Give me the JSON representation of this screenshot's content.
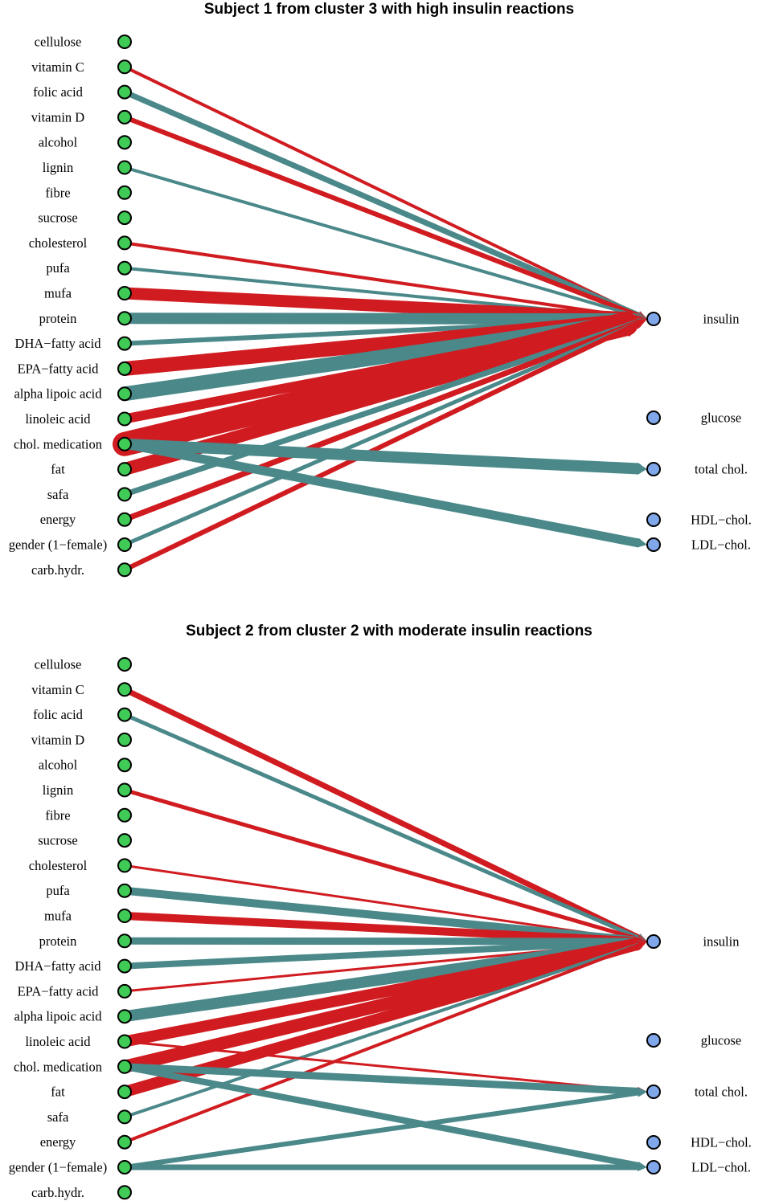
{
  "colors": {
    "positive": "#d01c20",
    "negative": "#4a888a",
    "input_node": "#3fcb55",
    "output_node": "#7fa7ea"
  },
  "inputs": [
    "cellulose",
    "vitamin C",
    "folic acid",
    "vitamin D",
    "alcohol",
    "lignin",
    "fibre",
    "sucrose",
    "cholesterol",
    "pufa",
    "mufa",
    "protein",
    "DHA−fatty acid",
    "EPA−fatty acid",
    "alpha lipoic acid",
    "linoleic acid",
    "chol. medication",
    "fat",
    "safa",
    "energy",
    "gender (1−female)",
    "carb.hydr."
  ],
  "outputs": [
    "insulin",
    "glucose",
    "total chol.",
    "HDL−chol.",
    "LDL−chol."
  ],
  "panels": [
    {
      "title": "Subject 1 from cluster 3 with high insulin reactions",
      "edges": [
        {
          "from": "vitamin C",
          "to": "insulin",
          "sign": "positive",
          "weight": 4
        },
        {
          "from": "folic acid",
          "to": "insulin",
          "sign": "negative",
          "weight": 7
        },
        {
          "from": "vitamin D",
          "to": "insulin",
          "sign": "positive",
          "weight": 6
        },
        {
          "from": "lignin",
          "to": "insulin",
          "sign": "negative",
          "weight": 4
        },
        {
          "from": "cholesterol",
          "to": "insulin",
          "sign": "positive",
          "weight": 4
        },
        {
          "from": "pufa",
          "to": "insulin",
          "sign": "negative",
          "weight": 4
        },
        {
          "from": "mufa",
          "to": "insulin",
          "sign": "positive",
          "weight": 15
        },
        {
          "from": "protein",
          "to": "insulin",
          "sign": "negative",
          "weight": 14
        },
        {
          "from": "DHA−fatty acid",
          "to": "insulin",
          "sign": "negative",
          "weight": 6
        },
        {
          "from": "EPA−fatty acid",
          "to": "insulin",
          "sign": "positive",
          "weight": 18
        },
        {
          "from": "alpha lipoic acid",
          "to": "insulin",
          "sign": "negative",
          "weight": 18
        },
        {
          "from": "linoleic acid",
          "to": "insulin",
          "sign": "positive",
          "weight": 12
        },
        {
          "from": "chol. medication",
          "to": "insulin",
          "sign": "positive",
          "weight": 30
        },
        {
          "from": "fat",
          "to": "insulin",
          "sign": "positive",
          "weight": 16
        },
        {
          "from": "safa",
          "to": "insulin",
          "sign": "negative",
          "weight": 7
        },
        {
          "from": "energy",
          "to": "insulin",
          "sign": "positive",
          "weight": 7
        },
        {
          "from": "gender (1−female)",
          "to": "insulin",
          "sign": "negative",
          "weight": 5
        },
        {
          "from": "carb.hydr.",
          "to": "insulin",
          "sign": "positive",
          "weight": 6
        },
        {
          "from": "chol. medication",
          "to": "total chol.",
          "sign": "negative",
          "weight": 14
        },
        {
          "from": "chol. medication",
          "to": "LDL−chol.",
          "sign": "negative",
          "weight": 11
        }
      ]
    },
    {
      "title": "Subject 2 from cluster 2 with moderate insulin reactions",
      "edges": [
        {
          "from": "vitamin C",
          "to": "insulin",
          "sign": "positive",
          "weight": 7
        },
        {
          "from": "folic acid",
          "to": "insulin",
          "sign": "negative",
          "weight": 5
        },
        {
          "from": "lignin",
          "to": "insulin",
          "sign": "positive",
          "weight": 5
        },
        {
          "from": "cholesterol",
          "to": "insulin",
          "sign": "positive",
          "weight": 3
        },
        {
          "from": "pufa",
          "to": "insulin",
          "sign": "negative",
          "weight": 10
        },
        {
          "from": "mufa",
          "to": "insulin",
          "sign": "positive",
          "weight": 10
        },
        {
          "from": "protein",
          "to": "insulin",
          "sign": "negative",
          "weight": 9
        },
        {
          "from": "DHA−fatty acid",
          "to": "insulin",
          "sign": "negative",
          "weight": 8
        },
        {
          "from": "EPA−fatty acid",
          "to": "insulin",
          "sign": "positive",
          "weight": 3
        },
        {
          "from": "alpha lipoic acid",
          "to": "insulin",
          "sign": "negative",
          "weight": 14
        },
        {
          "from": "linoleic acid",
          "to": "insulin",
          "sign": "positive",
          "weight": 14
        },
        {
          "from": "chol. medication",
          "to": "insulin",
          "sign": "positive",
          "weight": 16
        },
        {
          "from": "fat",
          "to": "insulin",
          "sign": "positive",
          "weight": 14
        },
        {
          "from": "safa",
          "to": "insulin",
          "sign": "negative",
          "weight": 4
        },
        {
          "from": "energy",
          "to": "insulin",
          "sign": "positive",
          "weight": 4
        },
        {
          "from": "linoleic acid",
          "to": "total chol.",
          "sign": "positive",
          "weight": 3
        },
        {
          "from": "chol. medication",
          "to": "total chol.",
          "sign": "negative",
          "weight": 9
        },
        {
          "from": "chol. medication",
          "to": "LDL−chol.",
          "sign": "negative",
          "weight": 8
        },
        {
          "from": "gender (1−female)",
          "to": "total chol.",
          "sign": "negative",
          "weight": 6
        },
        {
          "from": "gender (1−female)",
          "to": "LDL−chol.",
          "sign": "negative",
          "weight": 7
        }
      ]
    }
  ]
}
